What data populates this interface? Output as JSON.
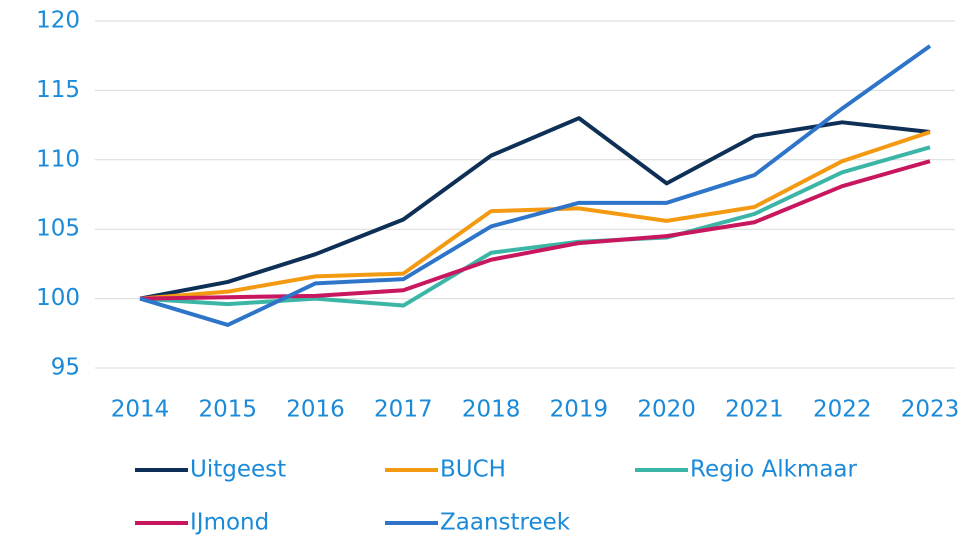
{
  "chart_data": {
    "type": "line",
    "x": [
      "2014",
      "2015",
      "2016",
      "2017",
      "2018",
      "2019",
      "2020",
      "2021",
      "2022",
      "2023"
    ],
    "series": [
      {
        "name": "Uitgeest",
        "color": "#0e2f56",
        "values": [
          100,
          101.2,
          103.2,
          105.7,
          110.3,
          113.0,
          108.3,
          111.7,
          112.7,
          112.0
        ]
      },
      {
        "name": "BUCH",
        "color": "#f39a12",
        "values": [
          100,
          100.5,
          101.6,
          101.8,
          106.3,
          106.5,
          105.6,
          106.6,
          109.9,
          112.0
        ]
      },
      {
        "name": "Regio Alkmaar",
        "color": "#3bb5a6",
        "values": [
          100,
          99.6,
          100.0,
          99.5,
          103.3,
          104.1,
          104.4,
          106.1,
          109.1,
          110.9
        ]
      },
      {
        "name": "IJmond",
        "color": "#c8175f",
        "values": [
          100,
          100.1,
          100.2,
          100.6,
          102.8,
          104.0,
          104.5,
          105.5,
          108.1,
          109.9
        ]
      },
      {
        "name": "Zaanstreek",
        "color": "#2e75c9",
        "values": [
          100,
          98.1,
          101.1,
          101.4,
          105.2,
          106.9,
          106.9,
          108.9,
          113.7,
          118.2
        ]
      }
    ],
    "ylim": [
      95,
      120
    ],
    "yticks": [
      95,
      100,
      105,
      110,
      115,
      120
    ],
    "grid": true,
    "legend": "bottom"
  }
}
